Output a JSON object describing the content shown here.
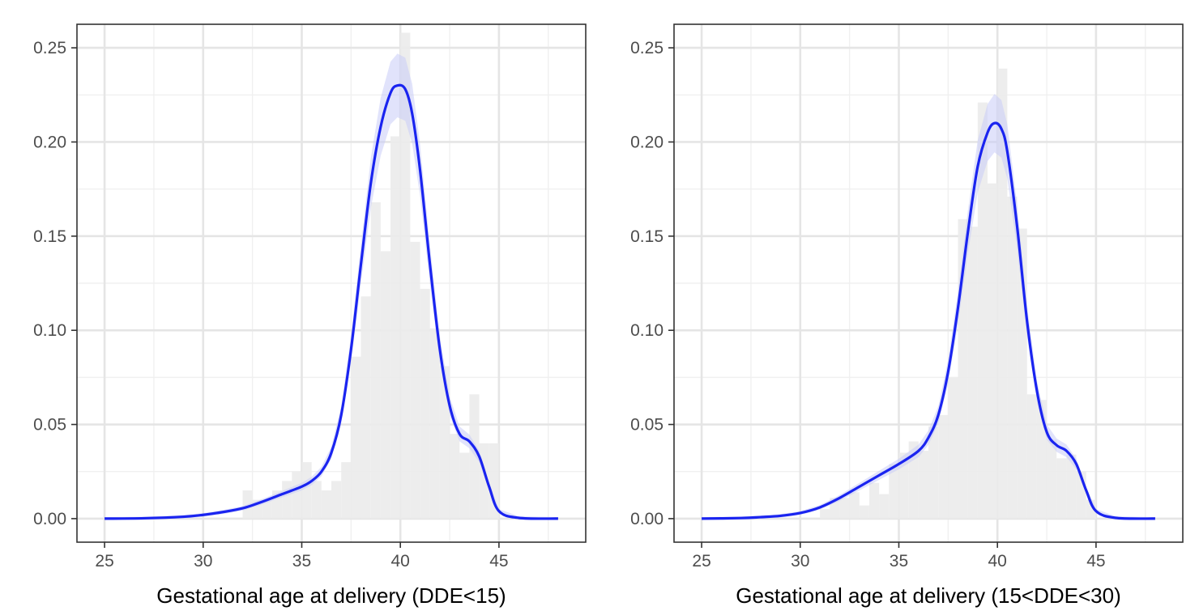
{
  "chart_data": [
    {
      "type": "histogram-density",
      "xlabel": "Gestational age at delivery (DDE<15)",
      "ylabel": "",
      "xlim": [
        23.6,
        49.4
      ],
      "ylim": [
        -0.0125,
        0.2625
      ],
      "x_ticks": [
        25,
        30,
        35,
        40,
        45
      ],
      "y_ticks": [
        0.0,
        0.05,
        0.1,
        0.15,
        0.2,
        0.25
      ],
      "x_tick_labels": [
        "25",
        "30",
        "35",
        "40",
        "45"
      ],
      "y_tick_labels": [
        "0.00",
        "0.05",
        "0.10",
        "0.15",
        "0.20",
        "0.25"
      ],
      "grid": true,
      "histogram": {
        "bin_width": 0.5,
        "bins": [
          {
            "x0": 32.0,
            "value": 0.015
          },
          {
            "x0": 32.5,
            "value": 0.01
          },
          {
            "x0": 33.0,
            "value": 0.01
          },
          {
            "x0": 33.5,
            "value": 0.015
          },
          {
            "x0": 34.0,
            "value": 0.02
          },
          {
            "x0": 34.5,
            "value": 0.025
          },
          {
            "x0": 35.0,
            "value": 0.03
          },
          {
            "x0": 35.5,
            "value": 0.02
          },
          {
            "x0": 36.0,
            "value": 0.015
          },
          {
            "x0": 36.5,
            "value": 0.02
          },
          {
            "x0": 37.0,
            "value": 0.03
          },
          {
            "x0": 37.5,
            "value": 0.086
          },
          {
            "x0": 38.0,
            "value": 0.118
          },
          {
            "x0": 38.5,
            "value": 0.168
          },
          {
            "x0": 39.0,
            "value": 0.142
          },
          {
            "x0": 39.5,
            "value": 0.203
          },
          {
            "x0": 40.0,
            "value": 0.258
          },
          {
            "x0": 40.5,
            "value": 0.147
          },
          {
            "x0": 41.0,
            "value": 0.122
          },
          {
            "x0": 41.5,
            "value": 0.101
          },
          {
            "x0": 42.0,
            "value": 0.081
          },
          {
            "x0": 42.5,
            "value": 0.045
          },
          {
            "x0": 43.0,
            "value": 0.035
          },
          {
            "x0": 43.5,
            "value": 0.066
          },
          {
            "x0": 44.0,
            "value": 0.04
          },
          {
            "x0": 44.5,
            "value": 0.04
          }
        ]
      },
      "density": {
        "color": "#1a24f0",
        "band_color": "#c8ccf8",
        "points": [
          {
            "x": 25.0,
            "y": 0.0
          },
          {
            "x": 27.0,
            "y": 0.0002
          },
          {
            "x": 29.0,
            "y": 0.001
          },
          {
            "x": 30.0,
            "y": 0.002
          },
          {
            "x": 31.0,
            "y": 0.0035
          },
          {
            "x": 32.0,
            "y": 0.0055
          },
          {
            "x": 33.0,
            "y": 0.009
          },
          {
            "x": 34.0,
            "y": 0.013
          },
          {
            "x": 35.0,
            "y": 0.017
          },
          {
            "x": 35.5,
            "y": 0.02
          },
          {
            "x": 36.0,
            "y": 0.025
          },
          {
            "x": 36.5,
            "y": 0.035
          },
          {
            "x": 37.0,
            "y": 0.055
          },
          {
            "x": 37.5,
            "y": 0.09
          },
          {
            "x": 38.0,
            "y": 0.135
          },
          {
            "x": 38.5,
            "y": 0.178
          },
          {
            "x": 39.0,
            "y": 0.208
          },
          {
            "x": 39.5,
            "y": 0.226
          },
          {
            "x": 39.85,
            "y": 0.23
          },
          {
            "x": 40.25,
            "y": 0.228
          },
          {
            "x": 40.6,
            "y": 0.215
          },
          {
            "x": 41.0,
            "y": 0.185
          },
          {
            "x": 41.5,
            "y": 0.135
          },
          {
            "x": 42.0,
            "y": 0.09
          },
          {
            "x": 42.5,
            "y": 0.06
          },
          {
            "x": 43.0,
            "y": 0.045
          },
          {
            "x": 43.5,
            "y": 0.041
          },
          {
            "x": 44.0,
            "y": 0.033
          },
          {
            "x": 44.5,
            "y": 0.017
          },
          {
            "x": 45.0,
            "y": 0.004
          },
          {
            "x": 46.0,
            "y": 0.0004
          },
          {
            "x": 48.0,
            "y": 0.0
          }
        ]
      }
    },
    {
      "type": "histogram-density",
      "xlabel": "Gestational age at delivery (15<DDE<30)",
      "ylabel": "",
      "xlim": [
        23.6,
        49.4
      ],
      "ylim": [
        -0.0125,
        0.2625
      ],
      "x_ticks": [
        25,
        30,
        35,
        40,
        45
      ],
      "y_ticks": [
        0.0,
        0.05,
        0.1,
        0.15,
        0.2,
        0.25
      ],
      "x_tick_labels": [
        "25",
        "30",
        "35",
        "40",
        "45"
      ],
      "y_tick_labels": [
        "0.00",
        "0.05",
        "0.10",
        "0.15",
        "0.20",
        "0.25"
      ],
      "grid": true,
      "histogram": {
        "bin_width": 0.5,
        "bins": [
          {
            "x0": 31.0,
            "value": 0.005
          },
          {
            "x0": 31.5,
            "value": 0.011
          },
          {
            "x0": 32.0,
            "value": 0.011
          },
          {
            "x0": 32.5,
            "value": 0.014
          },
          {
            "x0": 33.0,
            "value": 0.007
          },
          {
            "x0": 33.5,
            "value": 0.019
          },
          {
            "x0": 34.0,
            "value": 0.013
          },
          {
            "x0": 34.5,
            "value": 0.029
          },
          {
            "x0": 35.0,
            "value": 0.035
          },
          {
            "x0": 35.5,
            "value": 0.041
          },
          {
            "x0": 36.0,
            "value": 0.036
          },
          {
            "x0": 36.5,
            "value": 0.049
          },
          {
            "x0": 37.0,
            "value": 0.055
          },
          {
            "x0": 37.5,
            "value": 0.075
          },
          {
            "x0": 38.0,
            "value": 0.159
          },
          {
            "x0": 38.5,
            "value": 0.155
          },
          {
            "x0": 39.0,
            "value": 0.221
          },
          {
            "x0": 39.5,
            "value": 0.178
          },
          {
            "x0": 40.0,
            "value": 0.239
          },
          {
            "x0": 40.5,
            "value": 0.171
          },
          {
            "x0": 41.0,
            "value": 0.154
          },
          {
            "x0": 41.5,
            "value": 0.066
          },
          {
            "x0": 42.0,
            "value": 0.063
          },
          {
            "x0": 42.5,
            "value": 0.042
          },
          {
            "x0": 43.0,
            "value": 0.032
          },
          {
            "x0": 43.5,
            "value": 0.034
          },
          {
            "x0": 44.0,
            "value": 0.025
          },
          {
            "x0": 44.5,
            "value": 0.01
          }
        ]
      },
      "density": {
        "color": "#1a24f0",
        "band_color": "#c8ccf8",
        "points": [
          {
            "x": 25.0,
            "y": 0.0
          },
          {
            "x": 27.0,
            "y": 0.0003
          },
          {
            "x": 28.0,
            "y": 0.0008
          },
          {
            "x": 29.0,
            "y": 0.0015
          },
          {
            "x": 30.0,
            "y": 0.003
          },
          {
            "x": 31.0,
            "y": 0.006
          },
          {
            "x": 32.0,
            "y": 0.011
          },
          {
            "x": 33.0,
            "y": 0.017
          },
          {
            "x": 34.0,
            "y": 0.023
          },
          {
            "x": 35.0,
            "y": 0.029
          },
          {
            "x": 36.0,
            "y": 0.036
          },
          {
            "x": 36.5,
            "y": 0.043
          },
          {
            "x": 37.0,
            "y": 0.055
          },
          {
            "x": 37.5,
            "y": 0.078
          },
          {
            "x": 38.0,
            "y": 0.112
          },
          {
            "x": 38.5,
            "y": 0.152
          },
          {
            "x": 39.0,
            "y": 0.187
          },
          {
            "x": 39.5,
            "y": 0.205
          },
          {
            "x": 39.85,
            "y": 0.21
          },
          {
            "x": 40.2,
            "y": 0.207
          },
          {
            "x": 40.5,
            "y": 0.195
          },
          {
            "x": 41.0,
            "y": 0.155
          },
          {
            "x": 41.5,
            "y": 0.105
          },
          {
            "x": 42.0,
            "y": 0.068
          },
          {
            "x": 42.5,
            "y": 0.046
          },
          {
            "x": 43.0,
            "y": 0.039
          },
          {
            "x": 43.5,
            "y": 0.036
          },
          {
            "x": 44.0,
            "y": 0.029
          },
          {
            "x": 44.5,
            "y": 0.015
          },
          {
            "x": 45.0,
            "y": 0.004
          },
          {
            "x": 46.0,
            "y": 0.0004
          },
          {
            "x": 48.0,
            "y": 0.0
          }
        ]
      }
    }
  ]
}
